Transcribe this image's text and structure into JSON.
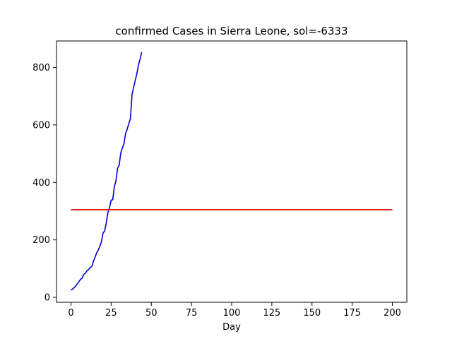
{
  "chart_data": {
    "type": "line",
    "title": "confirmed Cases in Sierra Leone, sol=-6333",
    "xlabel": "Day",
    "ylabel": "",
    "xlim": [
      -9,
      209
    ],
    "ylim": [
      -17,
      892
    ],
    "x_ticks": [
      0,
      25,
      50,
      75,
      100,
      125,
      150,
      175,
      200
    ],
    "y_ticks": [
      0,
      200,
      400,
      600,
      800
    ],
    "grid": false,
    "legend": "none",
    "colors": {
      "confirmed": "#0000cc",
      "threshold": "#dd0000",
      "axes": "#000000",
      "background": "#ffffff"
    },
    "series": [
      {
        "x": [
          0,
          1,
          2,
          3,
          4,
          5,
          6,
          7,
          8,
          9,
          10,
          11,
          12,
          13,
          14,
          15,
          16,
          17,
          18,
          19,
          20,
          21,
          22,
          23,
          24,
          25,
          26,
          27,
          28,
          29,
          30,
          31,
          32,
          33,
          34,
          35,
          36,
          37,
          38,
          39,
          40,
          41,
          42,
          43,
          44
        ],
        "y": [
          25,
          29,
          34,
          40,
          48,
          55,
          63,
          67,
          80,
          84,
          93,
          97,
          104,
          108,
          126,
          140,
          155,
          165,
          178,
          195,
          224,
          232,
          260,
          295,
          312,
          338,
          340,
          385,
          405,
          449,
          460,
          503,
          520,
          535,
          570,
          585,
          605,
          622,
          705,
          730,
          755,
          778,
          808,
          828,
          853
        ]
      },
      {
        "x": [
          0,
          200
        ],
        "y": [
          305,
          305
        ]
      }
    ]
  }
}
